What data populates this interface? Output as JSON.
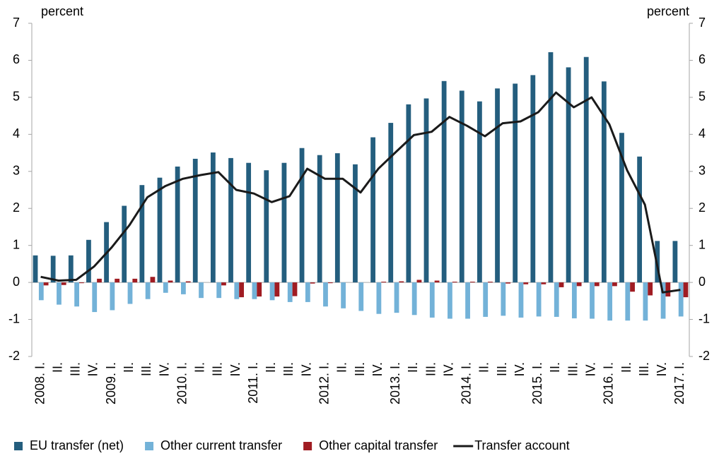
{
  "chart_data": {
    "type": "bar",
    "y_label": "percent",
    "y2_label": "percent",
    "categories": [
      "2008. I.",
      "II.",
      "III.",
      "IV.",
      "2009. I.",
      "II.",
      "III.",
      "IV.",
      "2010. I.",
      "II.",
      "III.",
      "IV.",
      "2011. I.",
      "II.",
      "III.",
      "IV.",
      "2012. I.",
      "II.",
      "III.",
      "IV.",
      "2013. I.",
      "II.",
      "III.",
      "IV.",
      "2014. I.",
      "II.",
      "III.",
      "IV.",
      "2015. I.",
      "II.",
      "III.",
      "IV.",
      "2016. I.",
      "II.",
      "III.",
      "IV.",
      "2017. I."
    ],
    "series": [
      {
        "name": "EU transfer (net)",
        "type": "bar",
        "color": "#245e7e",
        "values": [
          0.73,
          0.72,
          0.73,
          1.15,
          1.63,
          2.07,
          2.63,
          2.83,
          3.13,
          3.34,
          3.51,
          3.36,
          3.23,
          3.03,
          3.23,
          3.63,
          3.44,
          3.49,
          3.19,
          3.92,
          4.31,
          4.81,
          4.97,
          5.44,
          5.18,
          4.89,
          5.24,
          5.37,
          5.6,
          6.22,
          5.81,
          6.09,
          5.43,
          4.04,
          3.4,
          1.12,
          1.12
        ]
      },
      {
        "name": "Other current transfer",
        "type": "bar",
        "color": "#73b2d8",
        "values": [
          -0.48,
          -0.6,
          -0.65,
          -0.8,
          -0.75,
          -0.58,
          -0.45,
          -0.28,
          -0.32,
          -0.42,
          -0.42,
          -0.45,
          -0.45,
          -0.48,
          -0.53,
          -0.53,
          -0.65,
          -0.7,
          -0.77,
          -0.85,
          -0.82,
          -0.88,
          -0.95,
          -0.98,
          -0.98,
          -0.93,
          -0.9,
          -0.95,
          -0.92,
          -0.93,
          -0.97,
          -0.98,
          -1.03,
          -1.03,
          -1.03,
          -0.98,
          -0.92
        ]
      },
      {
        "name": "Other capital transfer",
        "type": "bar",
        "color": "#a01c22",
        "values": [
          -0.08,
          -0.07,
          -0.02,
          0.1,
          0.1,
          0.1,
          0.15,
          0.05,
          0.03,
          0.0,
          -0.08,
          -0.4,
          -0.38,
          -0.38,
          -0.37,
          -0.03,
          -0.02,
          0.0,
          0.0,
          0.02,
          0.03,
          0.07,
          0.05,
          0.02,
          0.02,
          0.02,
          -0.03,
          -0.05,
          -0.05,
          -0.13,
          -0.1,
          -0.1,
          -0.1,
          -0.25,
          -0.35,
          -0.38,
          -0.4
        ]
      },
      {
        "name": "Transfer account",
        "type": "line",
        "color": "#1a1a1a",
        "values": [
          0.15,
          0.05,
          0.07,
          0.43,
          0.95,
          1.55,
          2.3,
          2.6,
          2.8,
          2.9,
          2.98,
          2.5,
          2.4,
          2.17,
          2.33,
          3.07,
          2.8,
          2.8,
          2.43,
          3.07,
          3.53,
          3.98,
          4.07,
          4.47,
          4.23,
          3.95,
          4.3,
          4.35,
          4.6,
          5.13,
          4.73,
          5.0,
          4.27,
          3.03,
          2.1,
          -0.27,
          -0.2
        ]
      }
    ],
    "ylim": [
      -2,
      7
    ],
    "yticks": [
      -2,
      -1,
      0,
      1,
      2,
      3,
      4,
      5,
      6,
      7
    ],
    "y2lim": [
      -2,
      7
    ],
    "y2ticks": [
      -2,
      -1,
      0,
      1,
      2,
      3,
      4,
      5,
      6,
      7
    ],
    "legend": "bottom"
  }
}
